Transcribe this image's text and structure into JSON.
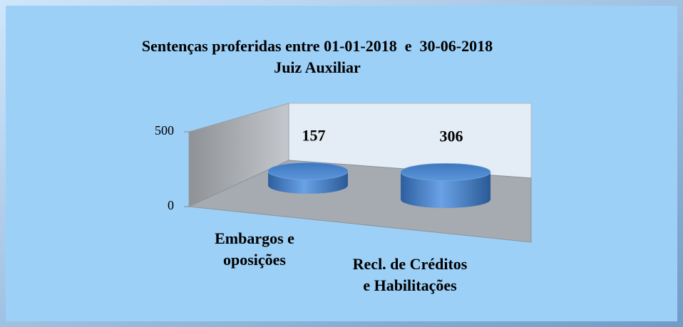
{
  "chart_data": {
    "type": "cylinder",
    "title": "Sentenças proferidas entre 01-01-2018  e  30-06-2018",
    "subtitle": "Juiz Auxiliar",
    "categories": [
      "Embargos e\noposições",
      "Recl. de Créditos\ne Habilitações"
    ],
    "values": [
      157,
      306
    ],
    "color": "#4a86d0",
    "ylim": [
      0,
      500
    ],
    "yticks": [
      0,
      500
    ]
  }
}
